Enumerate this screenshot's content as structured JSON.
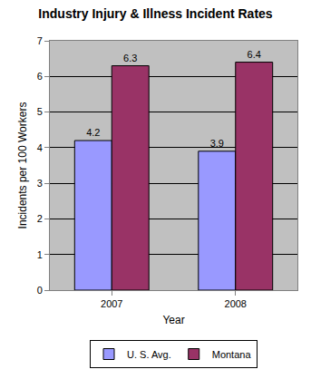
{
  "chart_data": {
    "type": "bar",
    "title": "Industry Injury & Illness Incident Rates",
    "x_label": "Year",
    "y_label": "Incidents per 100 Workers",
    "categories": [
      "2007",
      "2008"
    ],
    "series": [
      {
        "name": "U. S. Avg.",
        "color": "#9999ff",
        "values": [
          4.2,
          3.9
        ]
      },
      {
        "name": "Montana",
        "color": "#993366",
        "values": [
          6.3,
          6.4
        ]
      }
    ],
    "ylim": [
      0,
      7
    ],
    "yticks": [
      0,
      1,
      2,
      3,
      4,
      5,
      6,
      7
    ],
    "grid": true,
    "legend": "bottom",
    "data_labels": true
  }
}
